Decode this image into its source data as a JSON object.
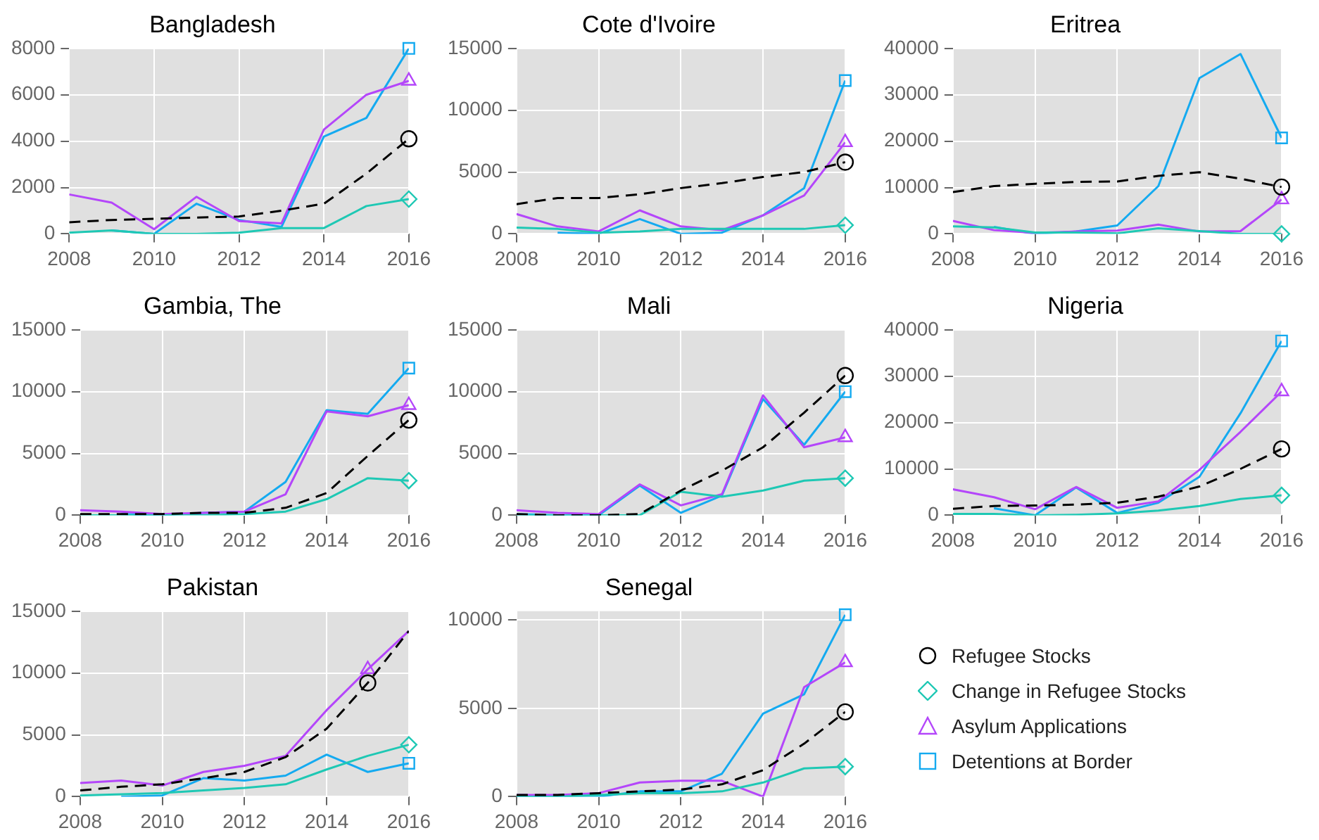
{
  "chart_data": [
    {
      "type": "line",
      "title": "Bangladesh",
      "x": [
        2008,
        2009,
        2010,
        2011,
        2012,
        2013,
        2014,
        2015,
        2016
      ],
      "xlim": [
        2008,
        2016
      ],
      "xticks": [
        2008,
        2010,
        2012,
        2014,
        2016
      ],
      "ylim": [
        0,
        8000
      ],
      "yticks": [
        0,
        2000,
        4000,
        6000,
        8000
      ],
      "grid": true,
      "series": [
        {
          "color": "#000000",
          "line_style": "dashed",
          "values": [
            500,
            600,
            650,
            700,
            750,
            1000,
            1300,
            2600,
            4100
          ]
        },
        {
          "color": "#1ec8b4",
          "line_style": "solid",
          "values": [
            50,
            150,
            0,
            0,
            50,
            250,
            250,
            1200,
            1500
          ]
        },
        {
          "color": "#b446fa",
          "line_style": "solid",
          "values": [
            1700,
            1350,
            200,
            1600,
            550,
            450,
            4500,
            6000,
            6600
          ]
        },
        {
          "color": "#14aaf0",
          "line_style": "solid",
          "values": [
            null,
            150,
            0,
            1300,
            600,
            300,
            4200,
            5000,
            8000
          ]
        },
        {
          "type": "scatter",
          "color": "#000000",
          "marker": "circle",
          "values": [
            null,
            null,
            null,
            null,
            null,
            null,
            null,
            null,
            4100
          ]
        },
        {
          "type": "scatter",
          "color": "#1ec8b4",
          "marker": "diamond",
          "values": [
            null,
            null,
            null,
            null,
            null,
            null,
            null,
            null,
            1500
          ]
        },
        {
          "type": "scatter",
          "color": "#b446fa",
          "marker": "triangle",
          "values": [
            null,
            null,
            null,
            null,
            null,
            null,
            null,
            null,
            6600
          ]
        },
        {
          "type": "scatter",
          "color": "#14aaf0",
          "marker": "square",
          "values": [
            null,
            null,
            null,
            null,
            null,
            null,
            null,
            null,
            8000
          ]
        }
      ]
    },
    {
      "type": "line",
      "title": "Cote d'Ivoire",
      "x": [
        2008,
        2009,
        2010,
        2011,
        2012,
        2013,
        2014,
        2015,
        2016
      ],
      "xlim": [
        2008,
        2016
      ],
      "xticks": [
        2008,
        2010,
        2012,
        2014,
        2016
      ],
      "ylim": [
        0,
        15000
      ],
      "yticks": [
        0,
        5000,
        10000,
        15000
      ],
      "grid": true,
      "series": [
        {
          "color": "#000000",
          "line_style": "dashed",
          "values": [
            2400,
            2900,
            2900,
            3200,
            3700,
            4100,
            4600,
            5000,
            5800
          ]
        },
        {
          "color": "#1ec8b4",
          "line_style": "solid",
          "values": [
            500,
            400,
            100,
            200,
            400,
            400,
            400,
            400,
            700
          ]
        },
        {
          "color": "#b446fa",
          "line_style": "solid",
          "values": [
            1600,
            600,
            200,
            1900,
            600,
            300,
            1500,
            3100,
            7400
          ]
        },
        {
          "color": "#14aaf0",
          "line_style": "solid",
          "values": [
            null,
            100,
            0,
            1200,
            0,
            100,
            1500,
            3700,
            12400
          ]
        },
        {
          "type": "scatter",
          "color": "#000000",
          "marker": "circle",
          "values": [
            null,
            null,
            null,
            null,
            null,
            null,
            null,
            null,
            5800
          ]
        },
        {
          "type": "scatter",
          "color": "#1ec8b4",
          "marker": "diamond",
          "values": [
            null,
            null,
            null,
            null,
            null,
            null,
            null,
            null,
            700
          ]
        },
        {
          "type": "scatter",
          "color": "#b446fa",
          "marker": "triangle",
          "values": [
            null,
            null,
            null,
            null,
            null,
            null,
            null,
            null,
            7400
          ]
        },
        {
          "type": "scatter",
          "color": "#14aaf0",
          "marker": "square",
          "values": [
            null,
            null,
            null,
            null,
            null,
            null,
            null,
            null,
            12400
          ]
        }
      ]
    },
    {
      "type": "line",
      "title": "Eritrea",
      "x": [
        2008,
        2009,
        2010,
        2011,
        2012,
        2013,
        2014,
        2015,
        2016
      ],
      "xlim": [
        2008,
        2016
      ],
      "xticks": [
        2008,
        2010,
        2012,
        2014,
        2016
      ],
      "ylim": [
        0,
        40000
      ],
      "yticks": [
        0,
        10000,
        20000,
        30000,
        40000
      ],
      "grid": true,
      "series": [
        {
          "color": "#000000",
          "line_style": "dashed",
          "values": [
            9000,
            10300,
            10800,
            11200,
            11300,
            12500,
            13300,
            11900,
            10100
          ]
        },
        {
          "color": "#1ec8b4",
          "line_style": "solid",
          "values": [
            1600,
            1400,
            300,
            300,
            100,
            1200,
            600,
            0,
            0
          ]
        },
        {
          "color": "#b446fa",
          "line_style": "solid",
          "values": [
            2800,
            800,
            200,
            500,
            700,
            2000,
            500,
            600,
            7400
          ]
        },
        {
          "color": "#14aaf0",
          "line_style": "solid",
          "values": [
            null,
            1500,
            0,
            500,
            1800,
            10300,
            33600,
            38800,
            20700
          ]
        },
        {
          "type": "scatter",
          "color": "#000000",
          "marker": "circle",
          "values": [
            null,
            null,
            null,
            null,
            null,
            null,
            null,
            null,
            10100
          ]
        },
        {
          "type": "scatter",
          "color": "#1ec8b4",
          "marker": "diamond",
          "values": [
            null,
            null,
            null,
            null,
            null,
            null,
            null,
            null,
            0
          ]
        },
        {
          "type": "scatter",
          "color": "#b446fa",
          "marker": "triangle",
          "values": [
            null,
            null,
            null,
            null,
            null,
            null,
            null,
            null,
            7400
          ]
        },
        {
          "type": "scatter",
          "color": "#14aaf0",
          "marker": "square",
          "values": [
            null,
            null,
            null,
            null,
            null,
            null,
            null,
            null,
            20700
          ]
        }
      ]
    },
    {
      "type": "line",
      "title": "Gambia, The",
      "x": [
        2008,
        2009,
        2010,
        2011,
        2012,
        2013,
        2014,
        2015,
        2016
      ],
      "xlim": [
        2008,
        2016
      ],
      "xticks": [
        2008,
        2010,
        2012,
        2014,
        2016
      ],
      "ylim": [
        0,
        15000
      ],
      "yticks": [
        0,
        5000,
        10000,
        15000
      ],
      "grid": true,
      "series": [
        {
          "color": "#000000",
          "line_style": "dashed",
          "values": [
            100,
            100,
            100,
            200,
            200,
            600,
            1800,
            4800,
            7700
          ]
        },
        {
          "color": "#1ec8b4",
          "line_style": "solid",
          "values": [
            0,
            0,
            0,
            0,
            100,
            300,
            1300,
            3000,
            2800
          ]
        },
        {
          "color": "#b446fa",
          "line_style": "solid",
          "values": [
            400,
            300,
            100,
            200,
            300,
            1700,
            8400,
            8000,
            8900
          ]
        },
        {
          "color": "#14aaf0",
          "line_style": "solid",
          "values": [
            null,
            100,
            0,
            200,
            300,
            2700,
            8500,
            8200,
            11900
          ]
        },
        {
          "type": "scatter",
          "color": "#000000",
          "marker": "circle",
          "values": [
            null,
            null,
            null,
            null,
            null,
            null,
            null,
            null,
            7700
          ]
        },
        {
          "type": "scatter",
          "color": "#1ec8b4",
          "marker": "diamond",
          "values": [
            null,
            null,
            null,
            null,
            null,
            null,
            null,
            null,
            2800
          ]
        },
        {
          "type": "scatter",
          "color": "#b446fa",
          "marker": "triangle",
          "values": [
            null,
            null,
            null,
            null,
            null,
            null,
            null,
            null,
            8900
          ]
        },
        {
          "type": "scatter",
          "color": "#14aaf0",
          "marker": "square",
          "values": [
            null,
            null,
            null,
            null,
            null,
            null,
            null,
            null,
            11900
          ]
        }
      ]
    },
    {
      "type": "line",
      "title": "Mali",
      "x": [
        2008,
        2009,
        2010,
        2011,
        2012,
        2013,
        2014,
        2015,
        2016
      ],
      "xlim": [
        2008,
        2016
      ],
      "xticks": [
        2008,
        2010,
        2012,
        2014,
        2016
      ],
      "ylim": [
        0,
        15000
      ],
      "yticks": [
        0,
        5000,
        10000,
        15000
      ],
      "grid": true,
      "series": [
        {
          "color": "#000000",
          "line_style": "dashed",
          "values": [
            100,
            0,
            0,
            100,
            2000,
            3600,
            5500,
            8300,
            11300
          ]
        },
        {
          "color": "#1ec8b4",
          "line_style": "solid",
          "values": [
            0,
            0,
            0,
            0,
            1900,
            1500,
            2000,
            2800,
            3000
          ]
        },
        {
          "color": "#b446fa",
          "line_style": "solid",
          "values": [
            400,
            200,
            100,
            2500,
            800,
            1700,
            9700,
            5500,
            6300
          ]
        },
        {
          "color": "#14aaf0",
          "line_style": "solid",
          "values": [
            100,
            0,
            0,
            2400,
            200,
            1600,
            9400,
            5700,
            10000
          ]
        },
        {
          "type": "scatter",
          "color": "#000000",
          "marker": "circle",
          "values": [
            null,
            null,
            null,
            null,
            null,
            null,
            null,
            null,
            11300
          ]
        },
        {
          "type": "scatter",
          "color": "#1ec8b4",
          "marker": "diamond",
          "values": [
            null,
            null,
            null,
            null,
            null,
            null,
            null,
            null,
            3000
          ]
        },
        {
          "type": "scatter",
          "color": "#b446fa",
          "marker": "triangle",
          "values": [
            null,
            null,
            null,
            null,
            null,
            null,
            null,
            null,
            6300
          ]
        },
        {
          "type": "scatter",
          "color": "#14aaf0",
          "marker": "square",
          "values": [
            null,
            null,
            null,
            null,
            null,
            null,
            null,
            null,
            10000
          ]
        }
      ]
    },
    {
      "type": "line",
      "title": "Nigeria",
      "x": [
        2008,
        2009,
        2010,
        2011,
        2012,
        2013,
        2014,
        2015,
        2016
      ],
      "xlim": [
        2008,
        2016
      ],
      "xticks": [
        2008,
        2010,
        2012,
        2014,
        2016
      ],
      "ylim": [
        0,
        40000
      ],
      "yticks": [
        0,
        10000,
        20000,
        30000,
        40000
      ],
      "grid": true,
      "series": [
        {
          "color": "#000000",
          "line_style": "dashed",
          "values": [
            1400,
            2000,
            2100,
            2300,
            2700,
            4000,
            6200,
            10000,
            14300
          ]
        },
        {
          "color": "#1ec8b4",
          "line_style": "solid",
          "values": [
            300,
            300,
            0,
            100,
            400,
            1000,
            2000,
            3500,
            4300
          ]
        },
        {
          "color": "#b446fa",
          "line_style": "solid",
          "values": [
            5600,
            3900,
            1300,
            6100,
            1600,
            3000,
            9800,
            18000,
            26700
          ]
        },
        {
          "color": "#14aaf0",
          "line_style": "solid",
          "values": [
            null,
            1500,
            0,
            6000,
            500,
            2700,
            8300,
            22000,
            37600
          ]
        },
        {
          "type": "scatter",
          "color": "#000000",
          "marker": "circle",
          "values": [
            null,
            null,
            null,
            null,
            null,
            null,
            null,
            null,
            14300
          ]
        },
        {
          "type": "scatter",
          "color": "#1ec8b4",
          "marker": "diamond",
          "values": [
            null,
            null,
            null,
            null,
            null,
            null,
            null,
            null,
            4300
          ]
        },
        {
          "type": "scatter",
          "color": "#b446fa",
          "marker": "triangle",
          "values": [
            null,
            null,
            null,
            null,
            null,
            null,
            null,
            null,
            26700
          ]
        },
        {
          "type": "scatter",
          "color": "#14aaf0",
          "marker": "square",
          "values": [
            null,
            null,
            null,
            null,
            null,
            null,
            null,
            null,
            37600
          ]
        }
      ]
    },
    {
      "type": "line",
      "title": "Pakistan",
      "x": [
        2008,
        2009,
        2010,
        2011,
        2012,
        2013,
        2014,
        2015,
        2016
      ],
      "xlim": [
        2008,
        2016
      ],
      "xticks": [
        2008,
        2010,
        2012,
        2014,
        2016
      ],
      "ylim": [
        0,
        15000
      ],
      "yticks": [
        0,
        5000,
        10000,
        15000
      ],
      "grid": true,
      "series": [
        {
          "color": "#000000",
          "line_style": "dashed",
          "values": [
            500,
            800,
            1000,
            1500,
            2000,
            3200,
            5500,
            9200,
            13400
          ]
        },
        {
          "color": "#1ec8b4",
          "line_style": "solid",
          "values": [
            100,
            200,
            300,
            500,
            700,
            1000,
            2200,
            3300,
            4200
          ]
        },
        {
          "color": "#b446fa",
          "line_style": "solid",
          "values": [
            1100,
            1300,
            900,
            2000,
            2500,
            3300,
            7000,
            10300,
            13400
          ]
        },
        {
          "color": "#14aaf0",
          "line_style": "solid",
          "values": [
            null,
            0,
            100,
            1500,
            1300,
            1700,
            3400,
            2000,
            2700
          ]
        },
        {
          "type": "scatter",
          "color": "#000000",
          "marker": "circle",
          "values": [
            null,
            null,
            null,
            null,
            null,
            null,
            null,
            9200,
            null
          ]
        },
        {
          "type": "scatter",
          "color": "#1ec8b4",
          "marker": "diamond",
          "values": [
            null,
            null,
            null,
            null,
            null,
            null,
            null,
            null,
            4200
          ]
        },
        {
          "type": "scatter",
          "color": "#b446fa",
          "marker": "triangle",
          "values": [
            null,
            null,
            null,
            null,
            null,
            null,
            null,
            10300,
            null
          ]
        },
        {
          "type": "scatter",
          "color": "#14aaf0",
          "marker": "square",
          "values": [
            null,
            null,
            null,
            null,
            null,
            null,
            null,
            null,
            2700
          ]
        }
      ]
    },
    {
      "type": "line",
      "title": "Senegal",
      "x": [
        2008,
        2009,
        2010,
        2011,
        2012,
        2013,
        2014,
        2015,
        2016
      ],
      "xlim": [
        2008,
        2016
      ],
      "xticks": [
        2008,
        2010,
        2012,
        2014,
        2016
      ],
      "ylim": [
        0,
        10500
      ],
      "yticks": [
        0,
        5000,
        10000
      ],
      "grid": true,
      "legend": "right",
      "series": [
        {
          "color": "#000000",
          "line_style": "dashed",
          "values": [
            100,
            100,
            200,
            300,
            400,
            700,
            1500,
            3000,
            4800
          ]
        },
        {
          "color": "#1ec8b4",
          "line_style": "solid",
          "values": [
            0,
            0,
            100,
            200,
            200,
            300,
            800,
            1600,
            1700
          ]
        },
        {
          "color": "#b446fa",
          "line_style": "solid",
          "values": [
            100,
            100,
            200,
            800,
            900,
            900,
            0,
            6200,
            7600
          ]
        },
        {
          "color": "#14aaf0",
          "line_style": "solid",
          "values": [
            0,
            0,
            0,
            300,
            300,
            1300,
            4700,
            5800,
            10300
          ]
        },
        {
          "type": "scatter",
          "name": "Refugee Stocks",
          "color": "#000000",
          "marker": "circle",
          "values": [
            null,
            null,
            null,
            null,
            null,
            null,
            null,
            null,
            4800
          ]
        },
        {
          "type": "scatter",
          "name": "Change in Refugee Stocks",
          "color": "#1ec8b4",
          "marker": "diamond",
          "values": [
            null,
            null,
            null,
            null,
            null,
            null,
            null,
            null,
            1700
          ]
        },
        {
          "type": "scatter",
          "name": "Asylum Applications",
          "color": "#b446fa",
          "marker": "triangle",
          "values": [
            null,
            null,
            null,
            null,
            null,
            null,
            null,
            null,
            7600
          ]
        },
        {
          "type": "scatter",
          "name": "Detentions at Border",
          "color": "#14aaf0",
          "marker": "square",
          "values": [
            null,
            null,
            null,
            null,
            null,
            null,
            null,
            null,
            10300
          ]
        }
      ]
    }
  ]
}
